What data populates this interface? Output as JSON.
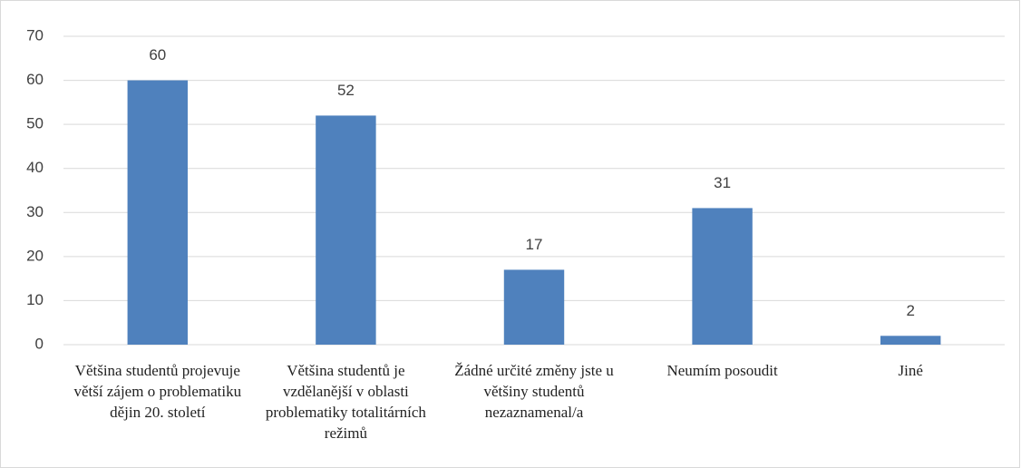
{
  "chart_data": {
    "type": "bar",
    "categories": [
      "Většina studentů projevuje větší zájem o problematiku dějin 20. století",
      "Většina studentů je vzdělanější v oblasti problematiky totalitárních režimů",
      "Žádné určité změny jste u většiny studentů nezaznamenal/a",
      "Neumím posoudit",
      "Jiné"
    ],
    "values": [
      60,
      52,
      17,
      31,
      2
    ],
    "color": "#4f81bd",
    "ylim": [
      0,
      70
    ],
    "yticks": [
      0,
      10,
      20,
      30,
      40,
      50,
      60,
      70
    ],
    "grid": true
  }
}
